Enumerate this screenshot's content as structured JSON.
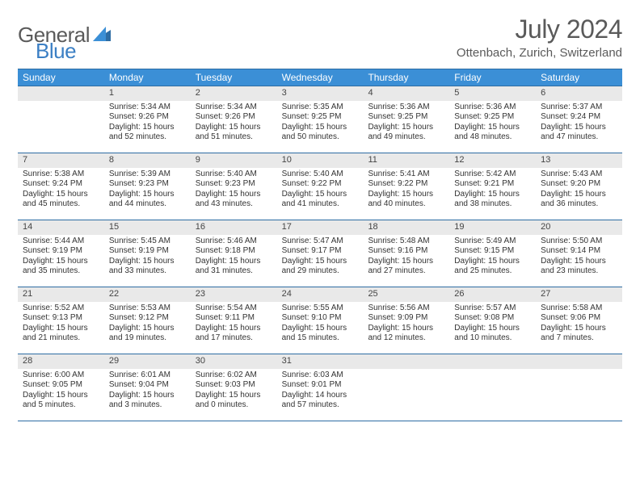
{
  "logo": {
    "text_general": "General",
    "text_blue": "Blue"
  },
  "title": "July 2024",
  "location": "Ottenbach, Zurich, Switzerland",
  "colors": {
    "header_bg": "#3b8fd6",
    "header_border": "#2d6ca3",
    "daynum_bg": "#e9e9e9",
    "text": "#333333",
    "title_text": "#5a5a5a",
    "logo_gray": "#5a5a5a",
    "logo_blue": "#3b7fc4"
  },
  "day_names": [
    "Sunday",
    "Monday",
    "Tuesday",
    "Wednesday",
    "Thursday",
    "Friday",
    "Saturday"
  ],
  "weeks": [
    [
      {
        "num": "",
        "sunrise": "",
        "sunset": "",
        "daylight": ""
      },
      {
        "num": "1",
        "sunrise": "Sunrise: 5:34 AM",
        "sunset": "Sunset: 9:26 PM",
        "daylight": "Daylight: 15 hours and 52 minutes."
      },
      {
        "num": "2",
        "sunrise": "Sunrise: 5:34 AM",
        "sunset": "Sunset: 9:26 PM",
        "daylight": "Daylight: 15 hours and 51 minutes."
      },
      {
        "num": "3",
        "sunrise": "Sunrise: 5:35 AM",
        "sunset": "Sunset: 9:25 PM",
        "daylight": "Daylight: 15 hours and 50 minutes."
      },
      {
        "num": "4",
        "sunrise": "Sunrise: 5:36 AM",
        "sunset": "Sunset: 9:25 PM",
        "daylight": "Daylight: 15 hours and 49 minutes."
      },
      {
        "num": "5",
        "sunrise": "Sunrise: 5:36 AM",
        "sunset": "Sunset: 9:25 PM",
        "daylight": "Daylight: 15 hours and 48 minutes."
      },
      {
        "num": "6",
        "sunrise": "Sunrise: 5:37 AM",
        "sunset": "Sunset: 9:24 PM",
        "daylight": "Daylight: 15 hours and 47 minutes."
      }
    ],
    [
      {
        "num": "7",
        "sunrise": "Sunrise: 5:38 AM",
        "sunset": "Sunset: 9:24 PM",
        "daylight": "Daylight: 15 hours and 45 minutes."
      },
      {
        "num": "8",
        "sunrise": "Sunrise: 5:39 AM",
        "sunset": "Sunset: 9:23 PM",
        "daylight": "Daylight: 15 hours and 44 minutes."
      },
      {
        "num": "9",
        "sunrise": "Sunrise: 5:40 AM",
        "sunset": "Sunset: 9:23 PM",
        "daylight": "Daylight: 15 hours and 43 minutes."
      },
      {
        "num": "10",
        "sunrise": "Sunrise: 5:40 AM",
        "sunset": "Sunset: 9:22 PM",
        "daylight": "Daylight: 15 hours and 41 minutes."
      },
      {
        "num": "11",
        "sunrise": "Sunrise: 5:41 AM",
        "sunset": "Sunset: 9:22 PM",
        "daylight": "Daylight: 15 hours and 40 minutes."
      },
      {
        "num": "12",
        "sunrise": "Sunrise: 5:42 AM",
        "sunset": "Sunset: 9:21 PM",
        "daylight": "Daylight: 15 hours and 38 minutes."
      },
      {
        "num": "13",
        "sunrise": "Sunrise: 5:43 AM",
        "sunset": "Sunset: 9:20 PM",
        "daylight": "Daylight: 15 hours and 36 minutes."
      }
    ],
    [
      {
        "num": "14",
        "sunrise": "Sunrise: 5:44 AM",
        "sunset": "Sunset: 9:19 PM",
        "daylight": "Daylight: 15 hours and 35 minutes."
      },
      {
        "num": "15",
        "sunrise": "Sunrise: 5:45 AM",
        "sunset": "Sunset: 9:19 PM",
        "daylight": "Daylight: 15 hours and 33 minutes."
      },
      {
        "num": "16",
        "sunrise": "Sunrise: 5:46 AM",
        "sunset": "Sunset: 9:18 PM",
        "daylight": "Daylight: 15 hours and 31 minutes."
      },
      {
        "num": "17",
        "sunrise": "Sunrise: 5:47 AM",
        "sunset": "Sunset: 9:17 PM",
        "daylight": "Daylight: 15 hours and 29 minutes."
      },
      {
        "num": "18",
        "sunrise": "Sunrise: 5:48 AM",
        "sunset": "Sunset: 9:16 PM",
        "daylight": "Daylight: 15 hours and 27 minutes."
      },
      {
        "num": "19",
        "sunrise": "Sunrise: 5:49 AM",
        "sunset": "Sunset: 9:15 PM",
        "daylight": "Daylight: 15 hours and 25 minutes."
      },
      {
        "num": "20",
        "sunrise": "Sunrise: 5:50 AM",
        "sunset": "Sunset: 9:14 PM",
        "daylight": "Daylight: 15 hours and 23 minutes."
      }
    ],
    [
      {
        "num": "21",
        "sunrise": "Sunrise: 5:52 AM",
        "sunset": "Sunset: 9:13 PM",
        "daylight": "Daylight: 15 hours and 21 minutes."
      },
      {
        "num": "22",
        "sunrise": "Sunrise: 5:53 AM",
        "sunset": "Sunset: 9:12 PM",
        "daylight": "Daylight: 15 hours and 19 minutes."
      },
      {
        "num": "23",
        "sunrise": "Sunrise: 5:54 AM",
        "sunset": "Sunset: 9:11 PM",
        "daylight": "Daylight: 15 hours and 17 minutes."
      },
      {
        "num": "24",
        "sunrise": "Sunrise: 5:55 AM",
        "sunset": "Sunset: 9:10 PM",
        "daylight": "Daylight: 15 hours and 15 minutes."
      },
      {
        "num": "25",
        "sunrise": "Sunrise: 5:56 AM",
        "sunset": "Sunset: 9:09 PM",
        "daylight": "Daylight: 15 hours and 12 minutes."
      },
      {
        "num": "26",
        "sunrise": "Sunrise: 5:57 AM",
        "sunset": "Sunset: 9:08 PM",
        "daylight": "Daylight: 15 hours and 10 minutes."
      },
      {
        "num": "27",
        "sunrise": "Sunrise: 5:58 AM",
        "sunset": "Sunset: 9:06 PM",
        "daylight": "Daylight: 15 hours and 7 minutes."
      }
    ],
    [
      {
        "num": "28",
        "sunrise": "Sunrise: 6:00 AM",
        "sunset": "Sunset: 9:05 PM",
        "daylight": "Daylight: 15 hours and 5 minutes."
      },
      {
        "num": "29",
        "sunrise": "Sunrise: 6:01 AM",
        "sunset": "Sunset: 9:04 PM",
        "daylight": "Daylight: 15 hours and 3 minutes."
      },
      {
        "num": "30",
        "sunrise": "Sunrise: 6:02 AM",
        "sunset": "Sunset: 9:03 PM",
        "daylight": "Daylight: 15 hours and 0 minutes."
      },
      {
        "num": "31",
        "sunrise": "Sunrise: 6:03 AM",
        "sunset": "Sunset: 9:01 PM",
        "daylight": "Daylight: 14 hours and 57 minutes."
      },
      {
        "num": "",
        "sunrise": "",
        "sunset": "",
        "daylight": ""
      },
      {
        "num": "",
        "sunrise": "",
        "sunset": "",
        "daylight": ""
      },
      {
        "num": "",
        "sunrise": "",
        "sunset": "",
        "daylight": ""
      }
    ]
  ]
}
